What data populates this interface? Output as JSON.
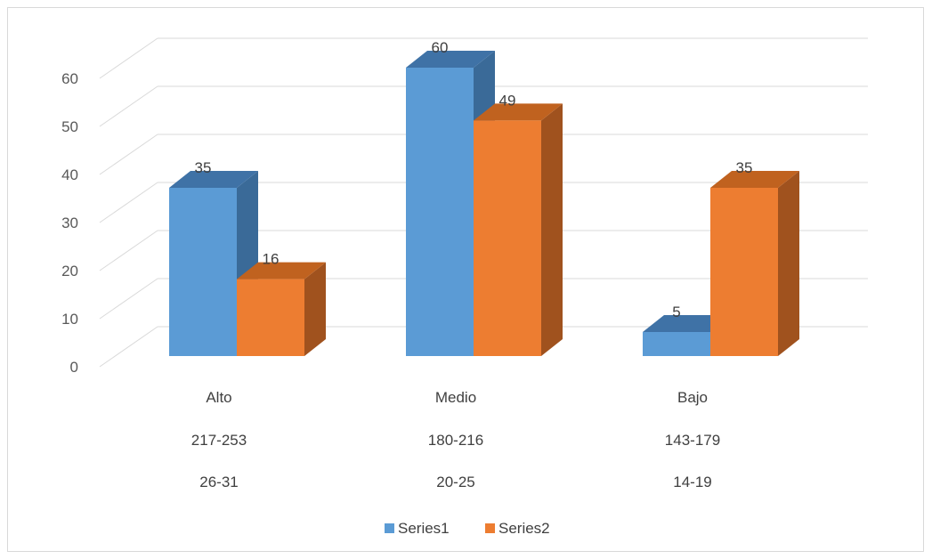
{
  "chart_data": {
    "type": "bar",
    "categories": [
      "Alto",
      "Medio",
      "Bajo"
    ],
    "category_sublabels": [
      [
        "217-253",
        "26-31"
      ],
      [
        "180-216",
        "20-25"
      ],
      [
        "143-179",
        "14-19"
      ]
    ],
    "series": [
      {
        "name": "Series1",
        "values": [
          35,
          60,
          5
        ],
        "color": "#5b9bd5",
        "side_color": "#3a6a98",
        "top_color": "#3f72a6"
      },
      {
        "name": "Series2",
        "values": [
          16,
          49,
          35
        ],
        "color": "#ed7d31",
        "side_color": "#a0521e",
        "top_color": "#c0621f"
      }
    ],
    "y_ticks": [
      0,
      10,
      20,
      30,
      40,
      50,
      60
    ],
    "ylim": [
      0,
      60
    ],
    "grid": true,
    "legend_position": "bottom",
    "style": "3d-clustered-column"
  }
}
